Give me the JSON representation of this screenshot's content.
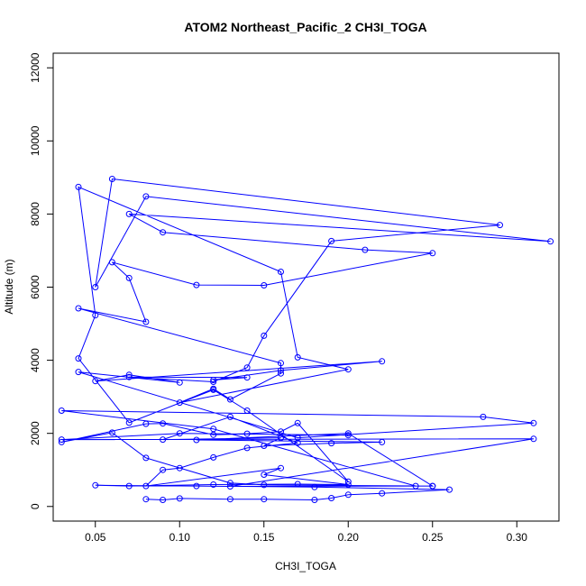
{
  "chart_data": {
    "type": "line",
    "title": "ATOM2 Northeast_Pacific_2 CH3I_TOGA",
    "xlabel": "CH3I_TOGA",
    "ylabel": "Altitude (m)",
    "xlim": [
      0.025,
      0.325
    ],
    "ylim": [
      -400,
      12400
    ],
    "x_ticks": [
      0.05,
      0.1,
      0.15,
      0.2,
      0.25,
      0.3
    ],
    "x_tick_labels": [
      "0.05",
      "0.10",
      "0.15",
      "0.20",
      "0.25",
      "0.30"
    ],
    "y_ticks": [
      0,
      2000,
      4000,
      6000,
      8000,
      10000,
      12000
    ],
    "y_tick_labels": [
      "0",
      "2000",
      "4000",
      "6000",
      "8000",
      "10000",
      "12000"
    ],
    "grid": false,
    "legend": "none",
    "marker": "open-circle",
    "color": "#0000ff",
    "series": [
      {
        "x": [
          0.08,
          0.09,
          0.1,
          0.13,
          0.15,
          0.18,
          0.19,
          0.2,
          0.22,
          0.26,
          0.18,
          0.11,
          0.05,
          0.07,
          0.12,
          0.17,
          0.2,
          0.15,
          0.16,
          0.08,
          0.09,
          0.1,
          0.12,
          0.14,
          0.17,
          0.13,
          0.09,
          0.16,
          0.15,
          0.19,
          0.22,
          0.11,
          0.2,
          0.25,
          0.15,
          0.13,
          0.08,
          0.06,
          0.03,
          0.08,
          0.09,
          0.12,
          0.14,
          0.16,
          0.17,
          0.2,
          0.14,
          0.12,
          0.07,
          0.04,
          0.05,
          0.04,
          0.16,
          0.17,
          0.2,
          0.1,
          0.12,
          0.13,
          0.16,
          0.16,
          0.04,
          0.08,
          0.07,
          0.06,
          0.11,
          0.15,
          0.25,
          0.21,
          0.09,
          0.07,
          0.32,
          0.08,
          0.05,
          0.06,
          0.29,
          0.19,
          0.15,
          0.14,
          0.12,
          0.07,
          0.14,
          0.12,
          0.16,
          0.22,
          0.05,
          0.07,
          0.1,
          0.04,
          0.17,
          0.31,
          0.28,
          0.03,
          0.12,
          0.24,
          0.25,
          0.13,
          0.31,
          0.03,
          0.1,
          0.2
        ],
        "y": [
          200,
          180,
          220,
          200,
          200,
          180,
          230,
          320,
          360,
          460,
          530,
          560,
          580,
          560,
          600,
          610,
          600,
          870,
          1050,
          560,
          1000,
          1050,
          1340,
          1600,
          1740,
          2450,
          1830,
          1880,
          1660,
          1730,
          1760,
          1820,
          2000,
          560,
          590,
          640,
          1330,
          2020,
          1760,
          2260,
          2270,
          1960,
          1990,
          2050,
          2280,
          680,
          2620,
          3190,
          2290,
          4050,
          5230,
          8740,
          6420,
          4080,
          3750,
          2840,
          3220,
          2930,
          3640,
          3920,
          5420,
          5050,
          6250,
          6680,
          6060,
          6050,
          6930,
          7020,
          7500,
          8000,
          7250,
          8480,
          6000,
          8960,
          7700,
          7260,
          4670,
          3800,
          3410,
          3540,
          3530,
          3460,
          3720,
          3970,
          3430,
          3600,
          3390,
          3680,
          1880,
          2280,
          2450,
          2620,
          2120,
          560,
          560,
          550,
          1850,
          1830,
          2000,
          1950
        ]
      }
    ]
  }
}
